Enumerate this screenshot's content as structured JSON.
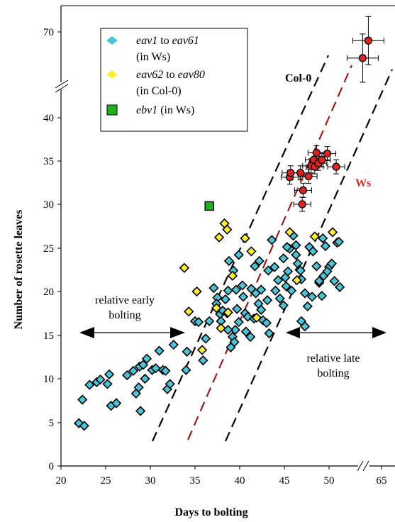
{
  "chart_data": {
    "type": "scatter",
    "xlabel": "Days to bolting",
    "ylabel": "Number of rosette leaves",
    "x_ticks": [
      "20",
      "25",
      "30",
      "35",
      "40",
      "45",
      "50",
      "65"
    ],
    "y_ticks": [
      "0",
      "5",
      "10",
      "15",
      "20",
      "25",
      "30",
      "35",
      "40",
      "70"
    ],
    "axis_break": "both axes broken: y between 40 and 70, x between 50 and 65",
    "legend": {
      "placement": "top-left",
      "entries": [
        {
          "line1_italic": "eav1",
          "line1_mid": " to ",
          "line1_italic2": "eav61",
          "line2": "(in Ws)",
          "color": "#4dc3d7"
        },
        {
          "line1_italic": "eav62",
          "line1_mid": " to ",
          "line1_italic2": "eav80",
          "line2": "(in Col-0)",
          "color": "#ffee33"
        },
        {
          "line1_italic": "ebv1",
          "line1_mid": " (in Ws)",
          "line1_italic2": "",
          "line2": "",
          "color": "#22b022"
        }
      ]
    },
    "annotations": {
      "col0": "Col-0",
      "ws": "Ws",
      "early1": "relative early",
      "early2": "bolting",
      "late1": "relative late",
      "late2": "bolting"
    },
    "colors": {
      "eav_ws": "#4dc3d7",
      "eav_col": "#ffee33",
      "ebv1": "#22b022",
      "wt": "#dd2222",
      "ws_line": "#9b1c1c"
    },
    "series": [
      {
        "name": "eav1 to eav61 (in Ws)",
        "marker": "diamond",
        "points": [
          [
            22,
            4.9
          ],
          [
            22.6,
            4.6
          ],
          [
            22.4,
            7.6
          ],
          [
            23.2,
            9.3
          ],
          [
            24,
            9.6
          ],
          [
            24.4,
            9.9
          ],
          [
            25.4,
            10.5
          ],
          [
            25.2,
            9.4
          ],
          [
            25.6,
            6.9
          ],
          [
            26.2,
            7.2
          ],
          [
            27.4,
            10.4
          ],
          [
            28.1,
            10.9
          ],
          [
            28.4,
            8.3
          ],
          [
            28.7,
            9
          ],
          [
            28.8,
            11.4
          ],
          [
            28.9,
            6.3
          ],
          [
            29.2,
            11.6
          ],
          [
            29.4,
            10
          ],
          [
            29.6,
            12.3
          ],
          [
            30.2,
            11
          ],
          [
            30.6,
            11.2
          ],
          [
            31,
            13.2
          ],
          [
            31.4,
            11
          ],
          [
            31.7,
            10.9
          ],
          [
            31.9,
            8.8
          ],
          [
            32.2,
            9.4
          ],
          [
            32.6,
            13.9
          ],
          [
            34,
            11
          ],
          [
            34.1,
            13.1
          ],
          [
            35,
            16.6
          ],
          [
            35.4,
            16.5
          ],
          [
            35.9,
            12.1
          ],
          [
            36.2,
            14.6
          ],
          [
            36.6,
            16.6
          ],
          [
            37.1,
            20.4
          ],
          [
            37.5,
            19.3
          ],
          [
            37.4,
            18.6
          ],
          [
            37.8,
            17.4
          ],
          [
            38.4,
            19.1
          ],
          [
            38.7,
            20.1
          ],
          [
            38.1,
            17.8
          ],
          [
            37.9,
            16.6
          ],
          [
            38.6,
            17.5
          ],
          [
            39,
            13.6
          ],
          [
            39.2,
            14.8
          ],
          [
            39.5,
            15.6
          ],
          [
            39.9,
            16.5
          ],
          [
            38.8,
            23.5
          ],
          [
            39.3,
            22.4
          ],
          [
            39.6,
            20.2
          ],
          [
            39.9,
            24.2
          ],
          [
            40.4,
            19.4
          ],
          [
            40.6,
            17.5
          ],
          [
            40.9,
            17.1
          ],
          [
            40.7,
            15.4
          ],
          [
            41.2,
            14.8
          ],
          [
            41.6,
            16.9
          ],
          [
            41.8,
            19.8
          ],
          [
            42.1,
            18.6
          ],
          [
            42.4,
            17.9
          ],
          [
            42.6,
            16.7
          ],
          [
            43,
            16.4
          ],
          [
            43.3,
            15.2
          ],
          [
            43.2,
            22.4
          ],
          [
            43.6,
            25.9
          ],
          [
            43.9,
            22.8
          ],
          [
            44,
            20.1
          ],
          [
            44.3,
            21.3
          ],
          [
            44.5,
            19.2
          ],
          [
            44.9,
            18.4
          ],
          [
            45.2,
            20.6
          ],
          [
            45.4,
            22.3
          ],
          [
            45.6,
            24.9
          ],
          [
            45.3,
            25.1
          ],
          [
            46,
            26.4
          ],
          [
            46.3,
            25.3
          ],
          [
            46.5,
            23.2
          ],
          [
            46.7,
            22.5
          ],
          [
            46.9,
            21.4
          ],
          [
            47.3,
            19.8
          ],
          [
            47.6,
            18.3
          ],
          [
            47.8,
            25.1
          ],
          [
            48.2,
            24.6
          ],
          [
            48.6,
            22.9
          ],
          [
            48.9,
            21
          ],
          [
            49.2,
            19.5
          ],
          [
            49.4,
            21.8
          ],
          [
            49.6,
            25.2
          ],
          [
            50,
            22.8
          ],
          [
            50.3,
            23.2
          ],
          [
            50.6,
            21.2
          ],
          [
            50.9,
            25.6
          ],
          [
            51.2,
            20.5
          ],
          [
            46.9,
            16.6
          ],
          [
            49.3,
            26.1
          ],
          [
            46.8,
            22.4
          ],
          [
            48.9,
            21.2
          ],
          [
            45.8,
            20.1
          ],
          [
            46.3,
            24.2
          ],
          [
            44.9,
            23.8
          ],
          [
            41.7,
            22.9
          ],
          [
            42.2,
            23.5
          ],
          [
            42.4,
            20.2
          ],
          [
            43.1,
            19
          ],
          [
            41.3,
            20.3
          ],
          [
            40.3,
            20.7
          ],
          [
            39.7,
            18
          ],
          [
            38.7,
            15.6
          ],
          [
            39.4,
            14.2
          ],
          [
            45.1,
            21.6
          ],
          [
            47.3,
            16
          ],
          [
            48.1,
            19.4
          ],
          [
            49.8,
            22.3
          ],
          [
            51.1,
            25.7
          ]
        ]
      },
      {
        "name": "eav62 to eav80 (in Col-0)",
        "marker": "diamond",
        "points": [
          [
            33.8,
            22.7
          ],
          [
            34.3,
            17.7
          ],
          [
            35.2,
            20
          ],
          [
            35.8,
            13.3
          ],
          [
            37.4,
            18.1
          ],
          [
            37.7,
            26.2
          ],
          [
            38.3,
            27.8
          ],
          [
            38.6,
            27.1
          ],
          [
            38.7,
            17.6
          ],
          [
            39.2,
            21.8
          ],
          [
            40.6,
            26.1
          ],
          [
            41.3,
            24.6
          ],
          [
            41.9,
            17
          ],
          [
            45.6,
            26.8
          ],
          [
            46.4,
            21.3
          ],
          [
            48.4,
            26.3
          ],
          [
            50.4,
            26.8
          ],
          [
            37.9,
            15.8
          ]
        ]
      },
      {
        "name": "ebv1 (in Ws)",
        "marker": "square",
        "points": [
          [
            36.6,
            29.8
          ]
        ]
      },
      {
        "name": "Ws wild type",
        "marker": "circle",
        "error_bars": true,
        "points": [
          [
            45.6,
            33.1
          ],
          [
            45.7,
            33.6
          ],
          [
            46.8,
            33.6
          ],
          [
            47.1,
            31.6
          ],
          [
            47,
            30
          ],
          [
            47.7,
            33.2
          ],
          [
            48,
            34.4
          ],
          [
            48.3,
            35.1
          ],
          [
            48.4,
            34.3
          ],
          [
            48.6,
            35.9
          ],
          [
            48.8,
            34.7
          ],
          [
            49.2,
            35.1
          ],
          [
            49.8,
            35.8
          ],
          [
            50.8,
            34.3
          ]
        ]
      },
      {
        "name": "Col-0 wild type",
        "marker": "circle",
        "error_bars": true,
        "points": [
          [
            52.8,
            67
          ],
          [
            53.8,
            69
          ]
        ]
      }
    ],
    "reference_lines": [
      {
        "label": "Ws",
        "style": "dashed",
        "color": "#9b1c1c"
      },
      {
        "label": "",
        "style": "dashed",
        "color": "#000000"
      },
      {
        "label": "",
        "style": "dashed",
        "color": "#000000"
      },
      {
        "label": "",
        "style": "dashed",
        "color": "#000000"
      }
    ]
  }
}
